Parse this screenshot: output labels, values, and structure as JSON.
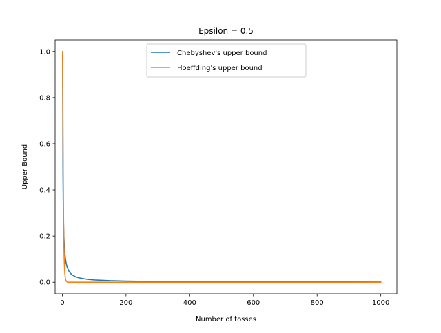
{
  "chart_data": {
    "type": "line",
    "title": "Epsilon = 0.5",
    "xlabel": "Number of tosses",
    "ylabel": "Upper Bound",
    "xlim": [
      -22.5,
      1050.5
    ],
    "ylim": [
      -0.05,
      1.05
    ],
    "xticks": [
      0,
      200,
      400,
      600,
      800,
      1000
    ],
    "yticks": [
      0.0,
      0.2,
      0.4,
      0.6,
      0.8,
      1.0
    ],
    "xtick_labels": [
      "0",
      "200",
      "400",
      "600",
      "800",
      "1000"
    ],
    "ytick_labels": [
      "0.0",
      "0.2",
      "0.4",
      "0.6",
      "0.8",
      "1.0"
    ],
    "legend_position": "upper center",
    "grid": false,
    "series": [
      {
        "name": "Chebyshev's upper bound",
        "color": "#1f77b4",
        "x": [
          1,
          2,
          3,
          4,
          5,
          6,
          8,
          10,
          12,
          15,
          20,
          25,
          30,
          40,
          50,
          60,
          80,
          100,
          150,
          200,
          300,
          400,
          500,
          600,
          700,
          800,
          900,
          1000
        ],
        "y": [
          1.0,
          0.5,
          0.333,
          0.25,
          0.2,
          0.167,
          0.125,
          0.1,
          0.083,
          0.067,
          0.05,
          0.04,
          0.033,
          0.025,
          0.02,
          0.017,
          0.0125,
          0.01,
          0.0067,
          0.005,
          0.0033,
          0.0025,
          0.002,
          0.0017,
          0.0014,
          0.0013,
          0.0011,
          0.001
        ]
      },
      {
        "name": "Hoeffding's upper bound",
        "color": "#ff7f0e",
        "x": [
          1,
          2,
          3,
          4,
          5,
          6,
          7,
          8,
          10,
          12,
          15,
          20,
          30,
          50,
          100,
          200,
          400,
          600,
          800,
          1000
        ],
        "y": [
          1.0,
          0.736,
          0.446,
          0.271,
          0.164,
          0.1,
          0.06,
          0.037,
          0.013,
          0.005,
          0.001,
          0.0001,
          0.0,
          0.0,
          0.0,
          0.0,
          0.0,
          0.0,
          0.0,
          0.0
        ]
      }
    ]
  }
}
